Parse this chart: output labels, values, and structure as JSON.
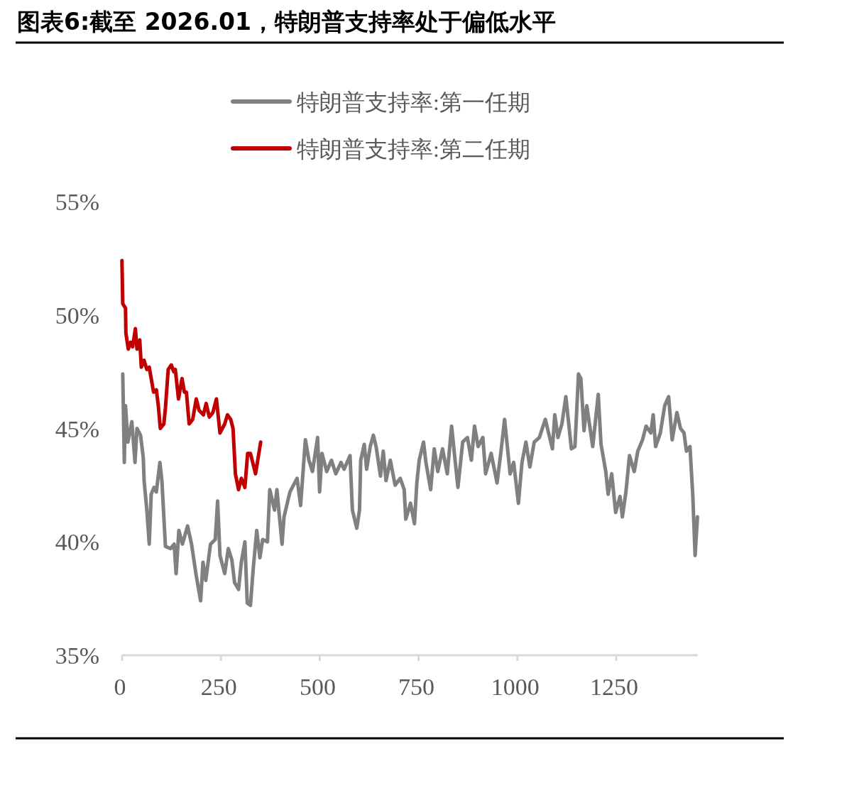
{
  "chart_data": {
    "type": "line",
    "title": "图表6:截至 2026.01，特朗普支持率处于偏低水平",
    "xlim": [
      0,
      1462
    ],
    "xticks": [
      0,
      250,
      500,
      750,
      1000,
      1250
    ],
    "ylim": [
      35,
      55
    ],
    "yticks": [
      {
        "value": 35,
        "label": "35%"
      },
      {
        "value": 40,
        "label": "40%"
      },
      {
        "value": 45,
        "label": "45%"
      },
      {
        "value": 50,
        "label": "50%"
      },
      {
        "value": 55,
        "label": "55%"
      }
    ],
    "legend": "top",
    "series": [
      {
        "name": "特朗普支持率:第一任期",
        "color": "#808080",
        "x": [
          7,
          11,
          14,
          20,
          30,
          38,
          43,
          52,
          59,
          61,
          68,
          74,
          79,
          86,
          92,
          101,
          106,
          115,
          128,
          137,
          142,
          149,
          158,
          163,
          171,
          181,
          193,
          204,
          210,
          217,
          229,
          241,
          247,
          253,
          265,
          274,
          283,
          290,
          300,
          307,
          316,
          322,
          330,
          337,
          346,
          354,
          361,
          373,
          379,
          391,
          397,
          410,
          415,
          430,
          448,
          457,
          469,
          478,
          487,
          500,
          505,
          511,
          523,
          535,
          546,
          559,
          567,
          582,
          588,
          599,
          606,
          609,
          618,
          624,
          633,
          641,
          648,
          659,
          666,
          673,
          684,
          696,
          709,
          719,
          723,
          735,
          745,
          751,
          757,
          768,
          774,
          786,
          795,
          804,
          816,
          828,
          839,
          846,
          855,
          867,
          879,
          889,
          897,
          906,
          918,
          925,
          939,
          954,
          964,
          973,
          987,
          996,
          1008,
          1017,
          1027,
          1037,
          1048,
          1061,
          1076,
          1094,
          1100,
          1108,
          1118,
          1128,
          1142,
          1151,
          1160,
          1166,
          1174,
          1181,
          1196,
          1210,
          1217,
          1229,
          1235,
          1244,
          1254,
          1265,
          1271,
          1280,
          1289,
          1301,
          1310,
          1322,
          1331,
          1343,
          1349,
          1355,
          1367,
          1378,
          1388,
          1397,
          1409,
          1418,
          1427,
          1433,
          1442,
          1449,
          1455,
          1461
        ],
        "values": [
          47.4,
          43.5,
          46.0,
          44.4,
          45.3,
          43.5,
          45.0,
          44.7,
          43.7,
          42.7,
          41.4,
          39.9,
          42.1,
          42.4,
          42.2,
          43.5,
          42.7,
          39.8,
          39.7,
          39.9,
          38.6,
          40.5,
          39.9,
          40.2,
          40.7,
          39.9,
          38.5,
          37.4,
          39.1,
          38.3,
          39.9,
          40.1,
          41.8,
          39.4,
          38.6,
          39.7,
          39.2,
          38.2,
          37.9,
          39.1,
          40.0,
          37.3,
          37.2,
          38.8,
          40.5,
          39.3,
          40.1,
          40.0,
          42.3,
          41.4,
          42.3,
          39.9,
          41.1,
          42.2,
          42.8,
          41.6,
          44.5,
          43.6,
          43.1,
          44.6,
          42.2,
          43.9,
          43.1,
          43.6,
          43.0,
          43.5,
          43.2,
          43.8,
          41.4,
          40.6,
          41.4,
          43.6,
          44.3,
          43.2,
          44.2,
          44.7,
          44.2,
          42.9,
          44.0,
          42.7,
          43.6,
          42.5,
          42.8,
          42.3,
          41.0,
          41.7,
          40.8,
          42.6,
          43.6,
          44.4,
          43.5,
          42.3,
          44.1,
          43.1,
          44.1,
          43.0,
          45.1,
          43.9,
          42.4,
          44.4,
          44.6,
          43.6,
          45.1,
          44.2,
          44.6,
          43.0,
          43.9,
          42.6,
          44.0,
          45.4,
          43.0,
          43.5,
          41.7,
          43.5,
          44.4,
          43.3,
          44.4,
          44.6,
          45.4,
          44.1,
          45.6,
          44.6,
          45.2,
          46.4,
          44.1,
          44.2,
          47.4,
          47.2,
          44.9,
          46.0,
          44.2,
          46.5,
          44.3,
          43.1,
          42.1,
          43.0,
          41.3,
          42.0,
          41.1,
          42.2,
          43.8,
          43.1,
          44.0,
          44.5,
          45.1,
          44.8,
          45.6,
          44.2,
          44.8,
          46.0,
          46.4,
          44.5,
          45.7,
          45.0,
          44.8,
          44.0,
          44.2,
          42.1,
          39.4,
          41.1
        ]
      },
      {
        "name": "特朗普支持率:第二任期",
        "color": "#c00000",
        "x": [
          5,
          7,
          14,
          15,
          21,
          27,
          32,
          39,
          43,
          50,
          54,
          61,
          68,
          74,
          79,
          85,
          92,
          97,
          102,
          111,
          115,
          122,
          130,
          136,
          140,
          148,
          157,
          163,
          168,
          175,
          184,
          193,
          200,
          211,
          218,
          226,
          235,
          244,
          253,
          265,
          272,
          280,
          286,
          292,
          300,
          307,
          316,
          323,
          330,
          343,
          356
        ],
        "values": [
          52.4,
          50.5,
          50.3,
          49.2,
          48.5,
          48.8,
          48.6,
          49.4,
          48.5,
          48.9,
          47.7,
          48.0,
          47.6,
          47.7,
          47.2,
          46.6,
          46.7,
          46.0,
          45.0,
          45.2,
          45.9,
          47.6,
          47.8,
          47.5,
          47.6,
          46.3,
          47.2,
          46.6,
          46.6,
          45.2,
          45.4,
          46.3,
          45.8,
          45.6,
          46.1,
          45.5,
          45.7,
          46.3,
          44.8,
          45.2,
          45.6,
          45.4,
          45.0,
          43.0,
          42.3,
          42.8,
          42.4,
          43.9,
          43.9,
          43.0,
          44.4
        ]
      }
    ]
  }
}
